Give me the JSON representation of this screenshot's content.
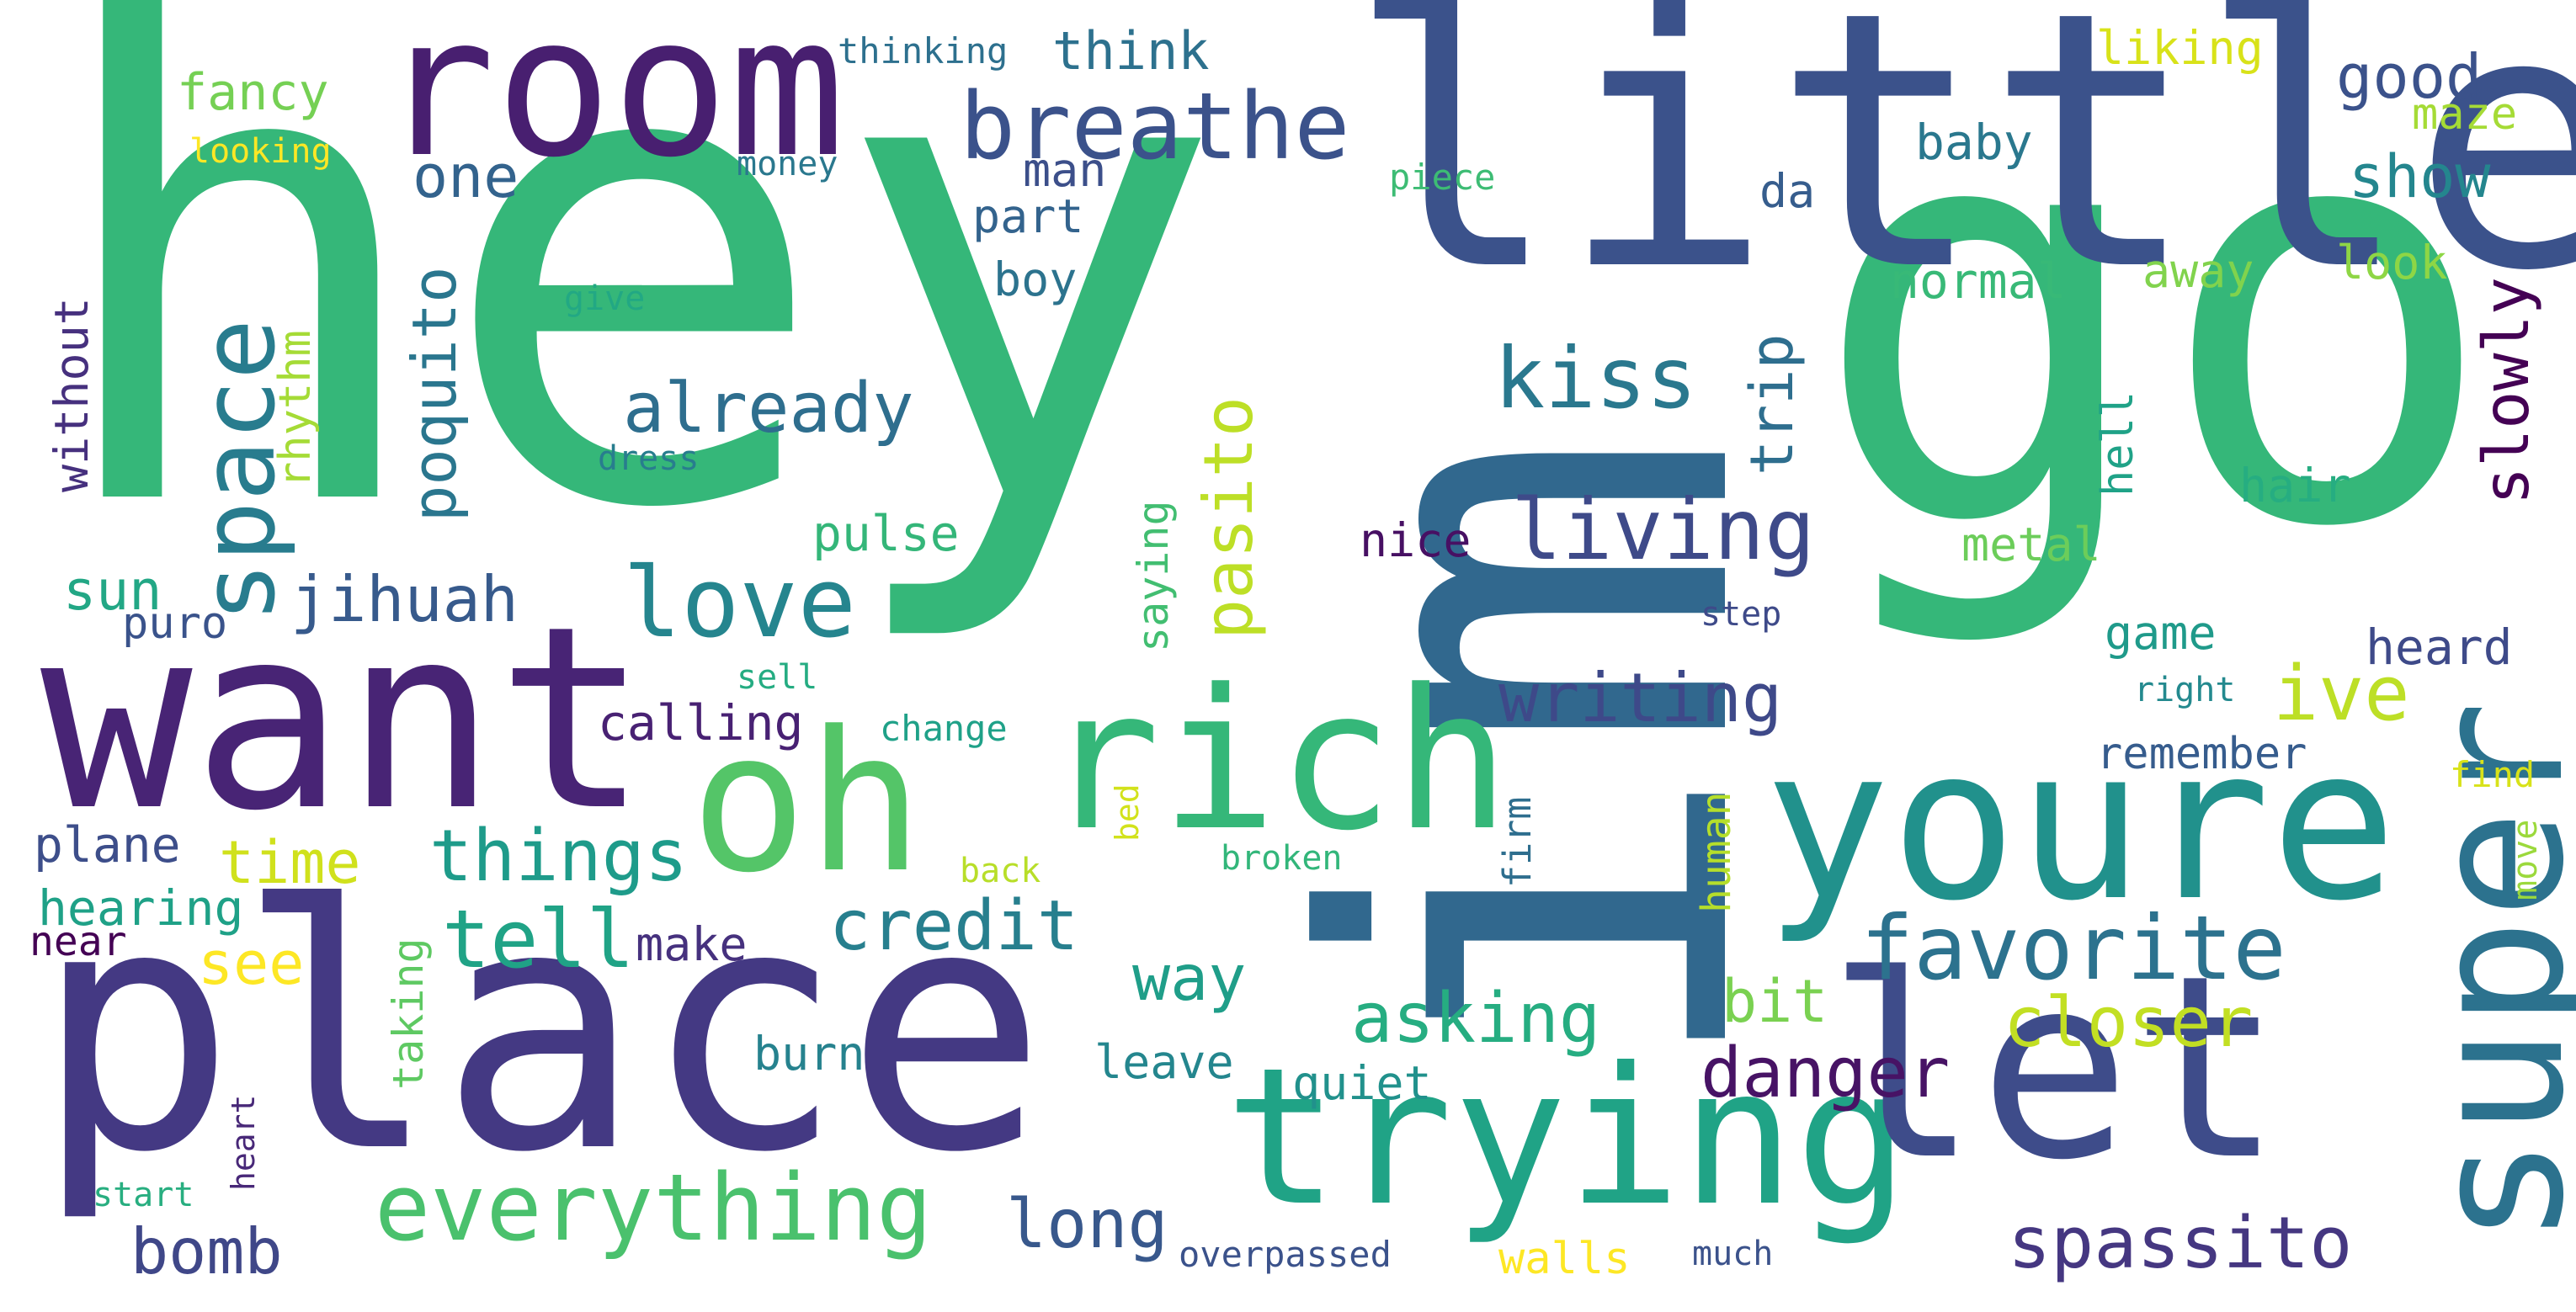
{
  "word_cloud": {
    "words": [
      {
        "text": "hey",
        "color": "#35b779"
      },
      {
        "text": "im",
        "color": "#31688e"
      },
      {
        "text": "go",
        "color": "#35b779"
      },
      {
        "text": "little",
        "color": "#3b528b"
      },
      {
        "text": "place",
        "color": "#443983"
      },
      {
        "text": "want",
        "color": "#482475"
      },
      {
        "text": "room",
        "color": "#481f70"
      },
      {
        "text": "youre",
        "color": "#21918c"
      },
      {
        "text": "trying",
        "color": "#20a386"
      },
      {
        "text": "let",
        "color": "#3e4c8a"
      },
      {
        "text": "super",
        "color": "#2c728e"
      },
      {
        "text": "rich",
        "color": "#35b779"
      },
      {
        "text": "oh",
        "color": "#54c568"
      },
      {
        "text": "breathe",
        "color": "#3b528b"
      },
      {
        "text": "everything",
        "color": "#4ac16d"
      },
      {
        "text": "space",
        "color": "#287c8e"
      },
      {
        "text": "love",
        "color": "#25858e"
      },
      {
        "text": "favorite",
        "color": "#2c728e"
      },
      {
        "text": "living",
        "color": "#3e4a89"
      },
      {
        "text": "kiss",
        "color": "#2a788e"
      },
      {
        "text": "already",
        "color": "#2e6e8e"
      },
      {
        "text": "things",
        "color": "#1e9b8a"
      },
      {
        "text": "tell",
        "color": "#20a386"
      },
      {
        "text": "credit",
        "color": "#277f8e"
      },
      {
        "text": "asking",
        "color": "#26ad81"
      },
      {
        "text": "spassito",
        "color": "#453781"
      },
      {
        "text": "danger",
        "color": "#471365"
      },
      {
        "text": "writing",
        "color": "#3e4989"
      },
      {
        "text": "ive",
        "color": "#bddf26"
      },
      {
        "text": "closer",
        "color": "#c2df23"
      },
      {
        "text": "long",
        "color": "#38588c"
      },
      {
        "text": "bomb",
        "color": "#3f4788"
      },
      {
        "text": "jihuah",
        "color": "#375a8c"
      },
      {
        "text": "pasito",
        "color": "#bddf26"
      },
      {
        "text": "poquito",
        "color": "#2a768e"
      },
      {
        "text": "good",
        "color": "#3b528b"
      },
      {
        "text": "show",
        "color": "#24868e"
      },
      {
        "text": "slowly",
        "color": "#440154"
      },
      {
        "text": "trip",
        "color": "#2e6e8e"
      },
      {
        "text": "one",
        "color": "#33638d"
      },
      {
        "text": "think",
        "color": "#2d718e"
      },
      {
        "text": "fancy",
        "color": "#75d054"
      },
      {
        "text": "time",
        "color": "#d0e11c"
      },
      {
        "text": "see",
        "color": "#fde725"
      },
      {
        "text": "sun",
        "color": "#22a785"
      },
      {
        "text": "way",
        "color": "#1f9e89"
      },
      {
        "text": "pulse",
        "color": "#34b679"
      },
      {
        "text": "calling",
        "color": "#482173"
      },
      {
        "text": "bit",
        "color": "#7ad151"
      },
      {
        "text": "hearing",
        "color": "#1fa187"
      },
      {
        "text": "make",
        "color": "#46317e"
      },
      {
        "text": "plane",
        "color": "#3d4e8a"
      },
      {
        "text": "liking",
        "color": "#d8e219"
      },
      {
        "text": "baby",
        "color": "#2a788e"
      },
      {
        "text": "maze",
        "color": "#a5db36"
      },
      {
        "text": "man",
        "color": "#3c4f8a"
      },
      {
        "text": "part",
        "color": "#33638d"
      },
      {
        "text": "boy",
        "color": "#2c738e"
      },
      {
        "text": "da",
        "color": "#365d8d"
      },
      {
        "text": "normal",
        "color": "#38b977"
      },
      {
        "text": "away",
        "color": "#81d34d"
      },
      {
        "text": "look",
        "color": "#8ed645"
      },
      {
        "text": "rhythm",
        "color": "#a5db36"
      },
      {
        "text": "without",
        "color": "#46307e"
      },
      {
        "text": "nice",
        "color": "#471063"
      },
      {
        "text": "saying",
        "color": "#42be71"
      },
      {
        "text": "hair",
        "color": "#26ad81"
      },
      {
        "text": "hell",
        "color": "#1fa287"
      },
      {
        "text": "metal",
        "color": "#6ccd5a"
      },
      {
        "text": "game",
        "color": "#1f9a8a"
      },
      {
        "text": "heard",
        "color": "#3e4a89"
      },
      {
        "text": "remember",
        "color": "#365c8d"
      },
      {
        "text": "puro",
        "color": "#3a538b"
      },
      {
        "text": "taking",
        "color": "#5ec962"
      },
      {
        "text": "burn",
        "color": "#26828e"
      },
      {
        "text": "leave",
        "color": "#24868e"
      },
      {
        "text": "quiet",
        "color": "#21918c"
      },
      {
        "text": "walls",
        "color": "#fde725"
      },
      {
        "text": "near",
        "color": "#440154"
      },
      {
        "text": "human",
        "color": "#b5de2b"
      },
      {
        "text": "firm",
        "color": "#2e6e8e"
      },
      {
        "text": "find",
        "color": "#d8e219"
      },
      {
        "text": "move",
        "color": "#9bd93c"
      },
      {
        "text": "right",
        "color": "#23898e"
      },
      {
        "text": "step",
        "color": "#3e4a89"
      },
      {
        "text": "piece",
        "color": "#3dbc74"
      },
      {
        "text": "thinking",
        "color": "#2d708e"
      },
      {
        "text": "looking",
        "color": "#fde725"
      },
      {
        "text": "money",
        "color": "#2a788e"
      },
      {
        "text": "give",
        "color": "#22a884"
      },
      {
        "text": "dress",
        "color": "#287d8e"
      },
      {
        "text": "sell",
        "color": "#25ac82"
      },
      {
        "text": "change",
        "color": "#1fa188"
      },
      {
        "text": "back",
        "color": "#b8de29"
      },
      {
        "text": "broken",
        "color": "#32b67a"
      },
      {
        "text": "bed",
        "color": "#d2e21b"
      },
      {
        "text": "heart",
        "color": "#482878"
      },
      {
        "text": "start",
        "color": "#28ae80"
      },
      {
        "text": "overpassed",
        "color": "#3b528b"
      },
      {
        "text": "much",
        "color": "#3b528b"
      }
    ]
  }
}
